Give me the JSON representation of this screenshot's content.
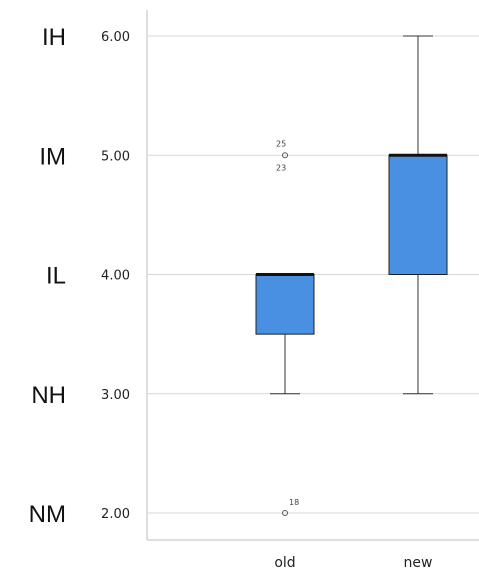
{
  "chart_data": {
    "type": "box",
    "categories": [
      "old",
      "new"
    ],
    "ylim": [
      1.8,
      6.2
    ],
    "yticks": [
      {
        "value": 6.0,
        "label": "6.00",
        "level": "IH"
      },
      {
        "value": 5.0,
        "label": "5.00",
        "level": "IM"
      },
      {
        "value": 4.0,
        "label": "4.00",
        "level": "IL"
      },
      {
        "value": 3.0,
        "label": "3.00",
        "level": "NH"
      },
      {
        "value": 2.0,
        "label": "2.00",
        "level": "NM"
      }
    ],
    "grid": true,
    "colors": {
      "box_fill": "#4a90e2"
    },
    "boxes": [
      {
        "category": "old",
        "whisker_low": 3.0,
        "q1": 3.5,
        "median": 4.0,
        "q3": 4.0,
        "whisker_high": 4.0,
        "outliers": [
          {
            "value": 5.0,
            "labels": [
              "25",
              "23"
            ]
          },
          {
            "value": 2.0,
            "labels": [
              "18"
            ]
          }
        ]
      },
      {
        "category": "new",
        "whisker_low": 3.0,
        "q1": 4.0,
        "median": 5.0,
        "q3": 5.0,
        "whisker_high": 6.0,
        "outliers": []
      }
    ]
  }
}
